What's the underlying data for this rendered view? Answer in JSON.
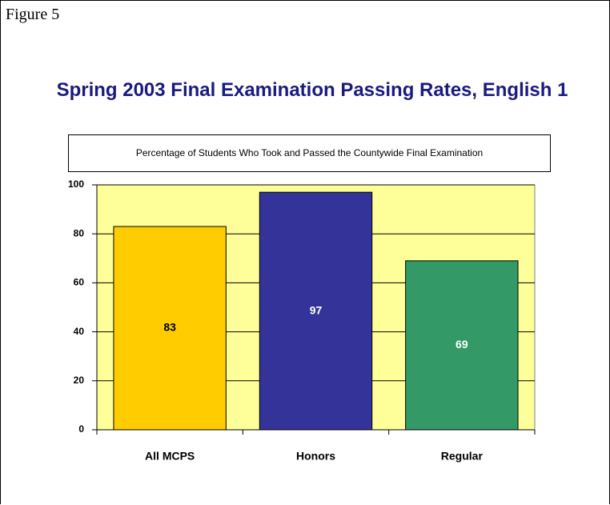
{
  "figure_label": "Figure 5",
  "chart_data": {
    "type": "bar",
    "title": "Spring 2003 Final Examination Passing Rates, English 1",
    "subtitle": "Percentage of Students Who Took and Passed the Countywide Final Examination",
    "categories": [
      "All MCPS",
      "Honors",
      "Regular"
    ],
    "values": [
      83,
      97,
      69
    ],
    "colors": [
      "#ffcc00",
      "#333399",
      "#339966"
    ],
    "label_colors": [
      "#000000",
      "#ffffff",
      "#ffffff"
    ],
    "plot_background": "#ffff99",
    "ylim": [
      0,
      100
    ],
    "yticks": [
      0,
      20,
      40,
      60,
      80,
      100
    ],
    "grid": true
  }
}
